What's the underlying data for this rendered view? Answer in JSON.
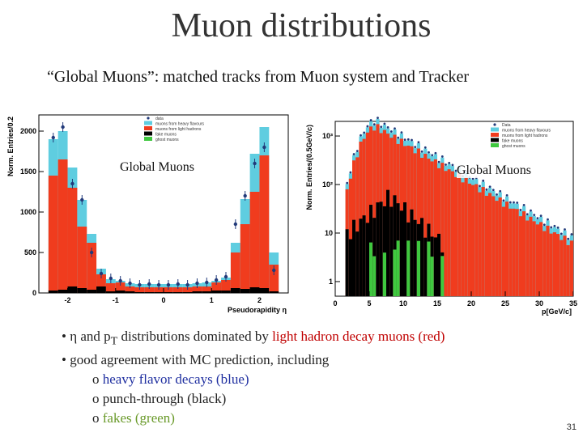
{
  "slide": {
    "title": "Muon distributions",
    "subtitle": "“Global Muons”: matched tracks from Muon system and Tracker",
    "page_number": "31"
  },
  "bullets": {
    "b1_prefix": "• η and p",
    "b1_sub": "T",
    "b1_mid": " distributions dominated by ",
    "b1_red": "light hadron decay muons (red)",
    "b2": "• good agreement with MC prediction, including",
    "s1_bullet": "o ",
    "s1_text": "heavy flavor decays (blue)",
    "s2_bullet": "o ",
    "s2_text": "punch-through (black)",
    "s3_bullet": "o ",
    "s3_text": "fakes (green)"
  },
  "colors": {
    "red": "#f03c1e",
    "cyan": "#5fcde0",
    "black": "#000000",
    "green": "#3fc83f",
    "data": "#223a7a"
  },
  "chart_data": [
    {
      "type": "bar",
      "overlay_label": "Global Muons",
      "ylabel": "Norm. Entries/0.2",
      "xlabel": "Pseudorapidity η",
      "xlim": [
        -2.6,
        2.6
      ],
      "ylim": [
        0,
        2200
      ],
      "x_ticks": [
        "-2",
        "-1",
        "0",
        "1",
        "2"
      ],
      "y_ticks": [
        "0",
        "500",
        "1000",
        "1500",
        "2000"
      ],
      "legend": [
        "data",
        "muons from heavy flavours",
        "muons from light hadrons",
        "fake muons",
        "ghost muons"
      ],
      "bin_edges": [
        -2.4,
        -2.2,
        -2.0,
        -1.8,
        -1.6,
        -1.4,
        -1.2,
        -1.0,
        -0.8,
        -0.6,
        -0.4,
        -0.2,
        0.0,
        0.2,
        0.4,
        0.6,
        0.8,
        1.0,
        1.2,
        1.4,
        1.6,
        1.8,
        2.0,
        2.2,
        2.4
      ],
      "series": [
        {
          "name": "muons from light hadrons",
          "values": [
            1450,
            1650,
            1300,
            820,
            620,
            230,
            120,
            130,
            80,
            70,
            70,
            70,
            70,
            70,
            70,
            80,
            80,
            130,
            160,
            500,
            850,
            1250,
            1700,
            350
          ]
        },
        {
          "name": "muons from heavy flavours",
          "values": [
            1900,
            2000,
            1550,
            1150,
            730,
            300,
            170,
            150,
            120,
            110,
            110,
            110,
            110,
            110,
            110,
            120,
            130,
            150,
            190,
            620,
            1160,
            1720,
            2050,
            500
          ]
        },
        {
          "name": "fake muons",
          "values": [
            30,
            40,
            80,
            60,
            40,
            80,
            20,
            30,
            20,
            10,
            10,
            10,
            10,
            10,
            10,
            20,
            20,
            30,
            30,
            60,
            50,
            70,
            60,
            20
          ]
        }
      ],
      "data_points": [
        1920,
        2050,
        1350,
        1150,
        500,
        240,
        180,
        150,
        120,
        100,
        110,
        100,
        100,
        110,
        100,
        120,
        130,
        160,
        200,
        850,
        1200,
        1600,
        1800,
        280
      ]
    },
    {
      "type": "bar",
      "overlay_label": "Global Muons",
      "ylabel": "Norm. Entries/(0.5GeV/c)",
      "xlabel": "p[GeV/c]",
      "xlim": [
        0,
        35
      ],
      "log_y": true,
      "ylim": [
        0.5,
        2000
      ],
      "x_ticks": [
        "0",
        "5",
        "10",
        "15",
        "20",
        "25",
        "30",
        "35"
      ],
      "y_ticks": [
        "1",
        "10",
        "10²",
        "10³"
      ],
      "legend": [
        "Data",
        "muons from heavy flavours",
        "muons from light hadrons",
        "fake muons",
        "ghost muons"
      ],
      "pt_peak_GeV": 6,
      "pt_peak_entries": 2000
    }
  ]
}
